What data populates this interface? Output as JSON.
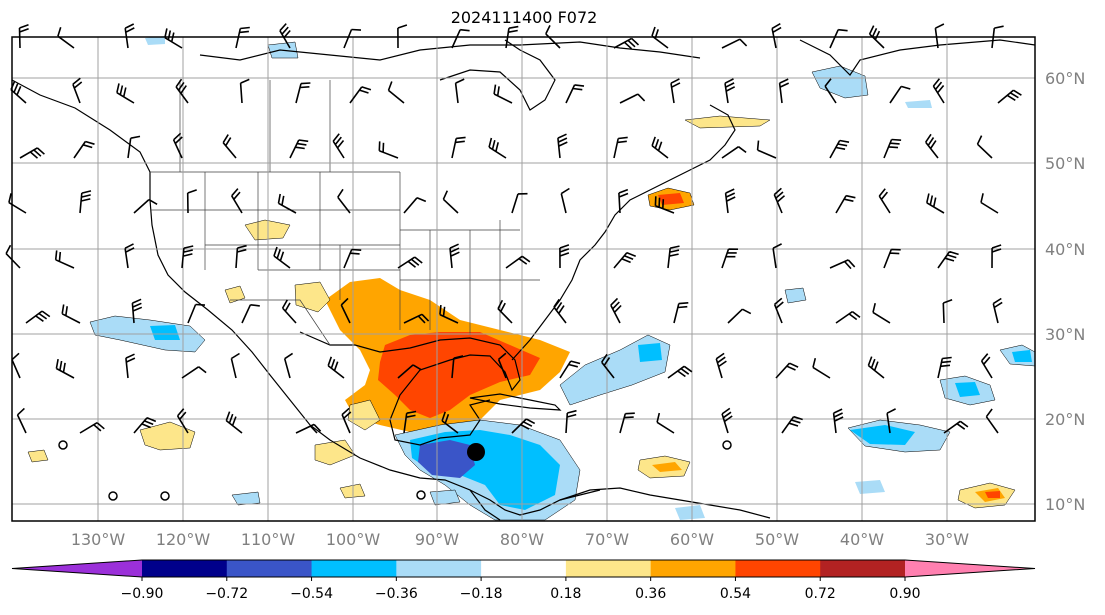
{
  "title": "2024111400 F072",
  "map": {
    "lon_labels": [
      "130°W",
      "120°W",
      "110°W",
      "100°W",
      "90°W",
      "80°W",
      "70°W",
      "60°W",
      "50°W",
      "40°W",
      "30°W"
    ],
    "lat_labels": [
      "60°N",
      "50°N",
      "40°N",
      "30°N",
      "20°N",
      "10°N"
    ]
  },
  "colorbar": {
    "ticks": [
      "−0.90",
      "−0.72",
      "−0.54",
      "−0.36",
      "−0.18",
      "0.18",
      "0.36",
      "0.54",
      "0.72",
      "0.90"
    ],
    "colors": [
      "#9b30d9",
      "#00008b",
      "#3a55c8",
      "#00bfff",
      "#aadcf7",
      "#ffffff",
      "#fde68a",
      "#ffa500",
      "#ff4500",
      "#b22222",
      "#ff80b0"
    ]
  },
  "colors": {
    "grid": "#a0a0a0",
    "coast": "#000000",
    "state": "#404040"
  }
}
